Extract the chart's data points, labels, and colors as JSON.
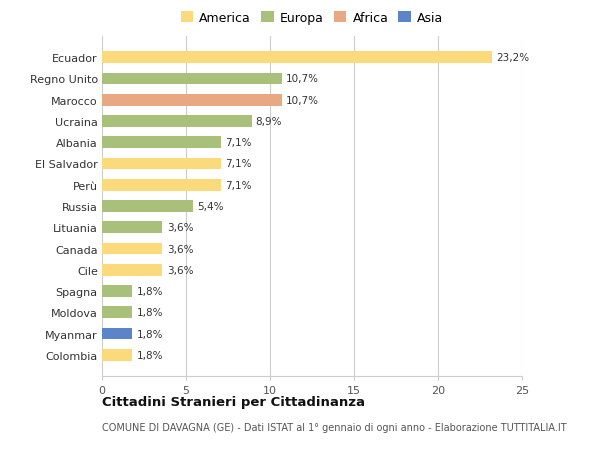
{
  "countries": [
    "Ecuador",
    "Regno Unito",
    "Marocco",
    "Ucraina",
    "Albania",
    "El Salvador",
    "Perù",
    "Russia",
    "Lituania",
    "Canada",
    "Cile",
    "Spagna",
    "Moldova",
    "Myanmar",
    "Colombia"
  ],
  "values": [
    23.2,
    10.7,
    10.7,
    8.9,
    7.1,
    7.1,
    7.1,
    5.4,
    3.6,
    3.6,
    3.6,
    1.8,
    1.8,
    1.8,
    1.8
  ],
  "labels": [
    "23,2%",
    "10,7%",
    "10,7%",
    "8,9%",
    "7,1%",
    "7,1%",
    "7,1%",
    "5,4%",
    "3,6%",
    "3,6%",
    "3,6%",
    "1,8%",
    "1,8%",
    "1,8%",
    "1,8%"
  ],
  "continents": [
    "America",
    "Europa",
    "Africa",
    "Europa",
    "Europa",
    "America",
    "America",
    "Europa",
    "Europa",
    "America",
    "America",
    "Europa",
    "Europa",
    "Asia",
    "America"
  ],
  "colors": {
    "America": "#FADA7A",
    "Europa": "#A8C07A",
    "Africa": "#E8A882",
    "Asia": "#5B85C8"
  },
  "xlim": [
    0,
    25
  ],
  "xticks": [
    0,
    5,
    10,
    15,
    20,
    25
  ],
  "title": "Cittadini Stranieri per Cittadinanza",
  "subtitle": "COMUNE DI DAVAGNA (GE) - Dati ISTAT al 1° gennaio di ogni anno - Elaborazione TUTTITALIA.IT",
  "background_color": "#ffffff",
  "grid_color": "#cccccc",
  "bar_height": 0.55
}
